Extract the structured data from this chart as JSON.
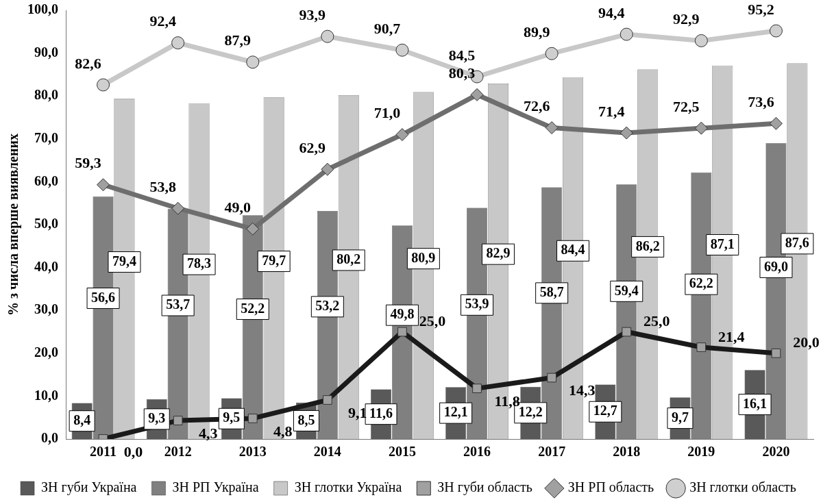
{
  "chart_data": {
    "type": "bar",
    "ylabel": "% з числа вперше виявлених",
    "categories": [
      "2011",
      "2012",
      "2013",
      "2014",
      "2015",
      "2016",
      "2017",
      "2018",
      "2019",
      "2020"
    ],
    "series": [
      {
        "name": "ЗН губи Україна",
        "color": "#595959",
        "values": [
          8.4,
          9.3,
          9.5,
          8.5,
          11.6,
          12.1,
          12.2,
          12.7,
          9.7,
          16.1
        ],
        "value_labels": [
          "8,4",
          "9,3",
          "9,5",
          "8,5",
          "11,6",
          "12,1",
          "12,2",
          "12,7",
          "9,7",
          "16,1"
        ]
      },
      {
        "name": "ЗН РП Україна",
        "color": "#808080",
        "values": [
          56.6,
          53.7,
          52.2,
          53.2,
          49.8,
          53.9,
          58.7,
          59.4,
          62.2,
          69.0
        ],
        "value_labels": [
          "56,6",
          "53,7",
          "52,2",
          "53,2",
          "49,8",
          "53,9",
          "58,7",
          "59,4",
          "62,2",
          "69,0"
        ]
      },
      {
        "name": "ЗН глотки Україна",
        "color": "#c8c8c8",
        "values": [
          79.4,
          78.3,
          79.7,
          80.2,
          80.9,
          82.9,
          84.4,
          86.2,
          87.1,
          87.6
        ],
        "value_labels": [
          "79,4",
          "78,3",
          "79,7",
          "80,2",
          "80,9",
          "82,9",
          "84,4",
          "86,2",
          "87,1",
          "87,6"
        ]
      },
      {
        "name": "ЗН губи область",
        "type": "line",
        "marker": "square",
        "color": "#1a1a1a",
        "values": [
          0.0,
          4.3,
          4.8,
          9.1,
          25.0,
          11.8,
          14.3,
          25.0,
          21.4,
          20.0
        ],
        "value_labels": [
          "0,0",
          "4,3",
          "4,8",
          "9,1",
          "25,0",
          "11,8",
          "14,3",
          "25,0",
          "21,4",
          "20,0"
        ]
      },
      {
        "name": "ЗН РП область",
        "type": "line",
        "marker": "diamond",
        "color": "#6e6e6e",
        "values": [
          59.3,
          53.8,
          49.0,
          62.9,
          71.0,
          80.3,
          72.6,
          71.4,
          72.5,
          73.6
        ],
        "value_labels": [
          "59,3",
          "53,8",
          "49,0",
          "62,9",
          "71,0",
          "80,3",
          "72,6",
          "71,4",
          "72,5",
          "73,6"
        ]
      },
      {
        "name": "ЗН глотки область",
        "type": "line",
        "marker": "circle",
        "color": "#c8c8c8",
        "values": [
          82.6,
          92.4,
          87.9,
          93.9,
          90.7,
          84.5,
          89.9,
          94.4,
          92.9,
          95.2
        ],
        "value_labels": [
          "82,6",
          "92,4",
          "87,9",
          "93,9",
          "90,7",
          "84,5",
          "89,9",
          "94,4",
          "92,9",
          "95,2"
        ]
      }
    ],
    "ylim": [
      0,
      100
    ],
    "yticks": [
      {
        "value": 0,
        "label": "0,0"
      },
      {
        "value": 10,
        "label": "10,0"
      },
      {
        "value": 20,
        "label": "20,0"
      },
      {
        "value": 30,
        "label": "30,0"
      },
      {
        "value": 40,
        "label": "40,0"
      },
      {
        "value": 50,
        "label": "50,0"
      },
      {
        "value": 60,
        "label": "60,0"
      },
      {
        "value": 70,
        "label": "70,0"
      },
      {
        "value": 80,
        "label": "80,0"
      },
      {
        "value": 90,
        "label": "90,0"
      },
      {
        "value": 100,
        "label": "100,0"
      }
    ],
    "grid": false,
    "legend": "bottom"
  }
}
